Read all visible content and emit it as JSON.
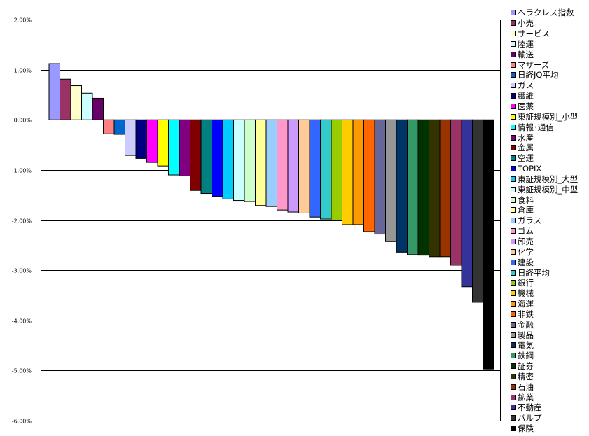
{
  "chart_data": {
    "type": "bar",
    "title": "",
    "xlabel": "",
    "ylabel": "",
    "ylim": [
      -6,
      2
    ],
    "y_tick_labels": [
      "2.00%",
      "1.00%",
      "0.00%",
      "-1.00%",
      "-2.00%",
      "-3.00%",
      "-4.00%",
      "-5.00%",
      "-6.00%"
    ],
    "y_ticks": [
      2,
      1,
      0,
      -1,
      -2,
      -3,
      -4,
      -5,
      -6
    ],
    "grid": true,
    "legend_position": "right",
    "categories": [
      "ヘラクレス指数",
      "小売",
      "サービス",
      "陸運",
      "輸送",
      "マザーズ",
      "日経JQ平均",
      "ガス",
      "繊維",
      "医薬",
      "東証規模別_小型",
      "情報･通信",
      "水産",
      "金属",
      "空運",
      "TOPIX",
      "東証規模別_大型",
      "東証規模別_中型",
      "食料",
      "倉庫",
      "ガラス",
      "ゴム",
      "卸売",
      "化学",
      "建設",
      "日経平均",
      "銀行",
      "機械",
      "海運",
      "非鉄",
      "金融",
      "製品",
      "電気",
      "鉄鋼",
      "証券",
      "精密",
      "石油",
      "鉱業",
      "不動産",
      "パルプ",
      "保険"
    ],
    "values": [
      1.12,
      0.81,
      0.68,
      0.53,
      0.43,
      -0.28,
      -0.29,
      -0.71,
      -0.77,
      -0.85,
      -0.92,
      -1.1,
      -1.12,
      -1.41,
      -1.47,
      -1.53,
      -1.58,
      -1.61,
      -1.63,
      -1.71,
      -1.73,
      -1.8,
      -1.84,
      -1.86,
      -1.94,
      -1.98,
      -2.01,
      -2.09,
      -2.09,
      -2.23,
      -2.28,
      -2.43,
      -2.64,
      -2.69,
      -2.7,
      -2.73,
      -2.73,
      -2.9,
      -3.33,
      -3.64,
      -4.97
    ],
    "colors": [
      "#9999FF",
      "#993366",
      "#FFFFCC",
      "#CCFFFF",
      "#660066",
      "#FF8080",
      "#0066CC",
      "#CCCCFF",
      "#000080",
      "#FF00FF",
      "#FFFF00",
      "#00FFFF",
      "#800080",
      "#800000",
      "#008080",
      "#0000FF",
      "#00CCFF",
      "#CCFFFF",
      "#CCFFCC",
      "#FFFF99",
      "#99CCFF",
      "#FF99CC",
      "#CC99FF",
      "#FFCC99",
      "#3366FF",
      "#33CCCC",
      "#99CC00",
      "#FFCC00",
      "#FF9900",
      "#FF6600",
      "#666699",
      "#969696",
      "#003366",
      "#339966",
      "#003300",
      "#333300",
      "#993300",
      "#993366",
      "#333399",
      "#333333",
      "#000000"
    ]
  }
}
